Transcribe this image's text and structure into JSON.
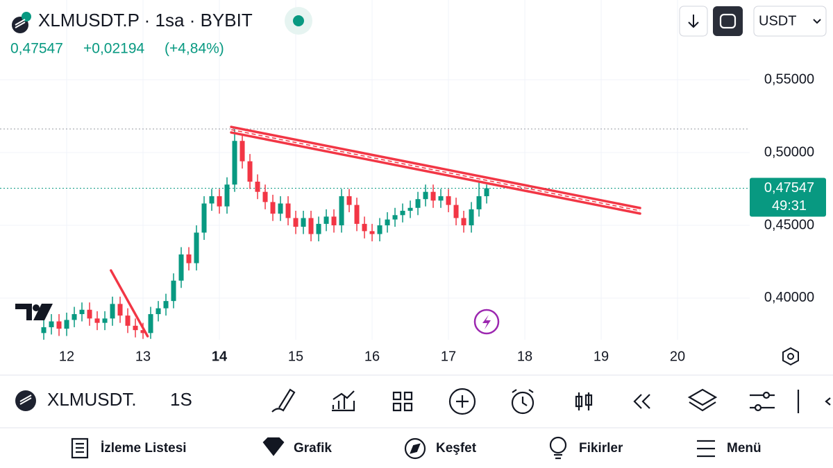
{
  "header": {
    "symbol_line": "XLMUSDT.P · 1sa · BYBIT",
    "price": "0,47547",
    "change": "+0,02194",
    "change_pct": "(+4,84%)",
    "currency": "USDT"
  },
  "chart_data": {
    "type": "candlestick",
    "up_color": "#089981",
    "down_color": "#f23645",
    "x": [
      11.7,
      11.8,
      11.9,
      12.0,
      12.1,
      12.2,
      12.3,
      12.4,
      12.5,
      12.6,
      12.7,
      12.8,
      12.9,
      13.0,
      13.1,
      13.2,
      13.3,
      13.4,
      13.5,
      13.6,
      13.7,
      13.8,
      13.9,
      14.0,
      14.1,
      14.2,
      14.3,
      14.4,
      14.5,
      14.6,
      14.7,
      14.8,
      14.9,
      15.0,
      15.1,
      15.2,
      15.3,
      15.4,
      15.5,
      15.6,
      15.7,
      15.8,
      15.9,
      16.0,
      16.1,
      16.2,
      16.3,
      16.4,
      16.5,
      16.6,
      16.7,
      16.8,
      16.9,
      17.0,
      17.1,
      17.2,
      17.3,
      17.4,
      17.5
    ],
    "open": [
      0.376,
      0.38,
      0.384,
      0.379,
      0.385,
      0.389,
      0.392,
      0.386,
      0.383,
      0.386,
      0.396,
      0.388,
      0.381,
      0.378,
      0.376,
      0.389,
      0.393,
      0.398,
      0.412,
      0.43,
      0.424,
      0.445,
      0.465,
      0.47,
      0.463,
      0.478,
      0.508,
      0.494,
      0.48,
      0.473,
      0.466,
      0.458,
      0.465,
      0.455,
      0.449,
      0.455,
      0.444,
      0.451,
      0.456,
      0.45,
      0.47,
      0.464,
      0.451,
      0.446,
      0.444,
      0.45,
      0.454,
      0.457,
      0.46,
      0.462,
      0.468,
      0.473,
      0.467,
      0.47,
      0.464,
      0.455,
      0.45,
      0.461,
      0.47
    ],
    "high": [
      0.385,
      0.389,
      0.389,
      0.39,
      0.394,
      0.397,
      0.397,
      0.391,
      0.391,
      0.401,
      0.401,
      0.393,
      0.386,
      0.383,
      0.394,
      0.398,
      0.403,
      0.417,
      0.435,
      0.435,
      0.45,
      0.47,
      0.475,
      0.475,
      0.483,
      0.5162,
      0.513,
      0.499,
      0.485,
      0.478,
      0.471,
      0.47,
      0.47,
      0.46,
      0.46,
      0.46,
      0.456,
      0.461,
      0.461,
      0.475,
      0.475,
      0.469,
      0.456,
      0.451,
      0.455,
      0.459,
      0.462,
      0.465,
      0.467,
      0.473,
      0.478,
      0.478,
      0.475,
      0.475,
      0.469,
      0.46,
      0.466,
      0.48,
      0.478
    ],
    "low": [
      0.371,
      0.375,
      0.374,
      0.374,
      0.38,
      0.384,
      0.381,
      0.378,
      0.378,
      0.381,
      0.383,
      0.376,
      0.373,
      0.372,
      0.372,
      0.384,
      0.388,
      0.393,
      0.407,
      0.419,
      0.419,
      0.44,
      0.46,
      0.458,
      0.458,
      0.473,
      0.489,
      0.475,
      0.468,
      0.461,
      0.453,
      0.453,
      0.45,
      0.444,
      0.444,
      0.439,
      0.439,
      0.446,
      0.445,
      0.445,
      0.459,
      0.446,
      0.441,
      0.439,
      0.439,
      0.445,
      0.449,
      0.452,
      0.455,
      0.457,
      0.463,
      0.462,
      0.462,
      0.459,
      0.45,
      0.445,
      0.445,
      0.456,
      0.465
    ],
    "close": [
      0.38,
      0.384,
      0.379,
      0.385,
      0.389,
      0.392,
      0.386,
      0.383,
      0.386,
      0.396,
      0.388,
      0.381,
      0.378,
      0.376,
      0.389,
      0.393,
      0.398,
      0.412,
      0.43,
      0.424,
      0.445,
      0.465,
      0.47,
      0.463,
      0.478,
      0.508,
      0.494,
      0.48,
      0.473,
      0.466,
      0.458,
      0.465,
      0.455,
      0.449,
      0.455,
      0.444,
      0.451,
      0.456,
      0.45,
      0.47,
      0.464,
      0.451,
      0.446,
      0.444,
      0.45,
      0.454,
      0.457,
      0.46,
      0.462,
      0.468,
      0.473,
      0.467,
      0.47,
      0.464,
      0.455,
      0.45,
      0.461,
      0.47,
      0.47547
    ],
    "xlim": [
      11.127,
      20.945
    ],
    "ylim": [
      0.3714,
      0.6048
    ],
    "xticks": [
      12,
      13,
      14,
      15,
      16,
      17,
      18,
      19,
      20
    ],
    "yticks": [
      {
        "value": 0.4,
        "label": "0,40000"
      },
      {
        "value": 0.45,
        "label": "0,45000"
      },
      {
        "value": 0.5,
        "label": "0,50000"
      },
      {
        "value": 0.55,
        "label": "0,55000"
      }
    ],
    "last_price": {
      "value": 0.47547,
      "label": "0,47547"
    },
    "countdown": "49:31",
    "high_line": 0.5162,
    "trendlines": [
      {
        "x": [
          14.155,
          19.509
        ],
        "y": [
          0.5176,
          0.4619
        ]
      },
      {
        "x": [
          14.155,
          19.509
        ],
        "y": [
          0.5138,
          0.4581
        ]
      },
      {
        "x": [
          12.58,
          13.06
        ],
        "y": [
          0.419,
          0.3738
        ]
      }
    ]
  },
  "toolbar": {
    "symbol": "XLMUSDT.",
    "interval": "1S"
  },
  "nav": {
    "items": [
      "İzleme Listesi",
      "Grafik",
      "Keşfet",
      "Fikirler",
      "Menü"
    ]
  }
}
